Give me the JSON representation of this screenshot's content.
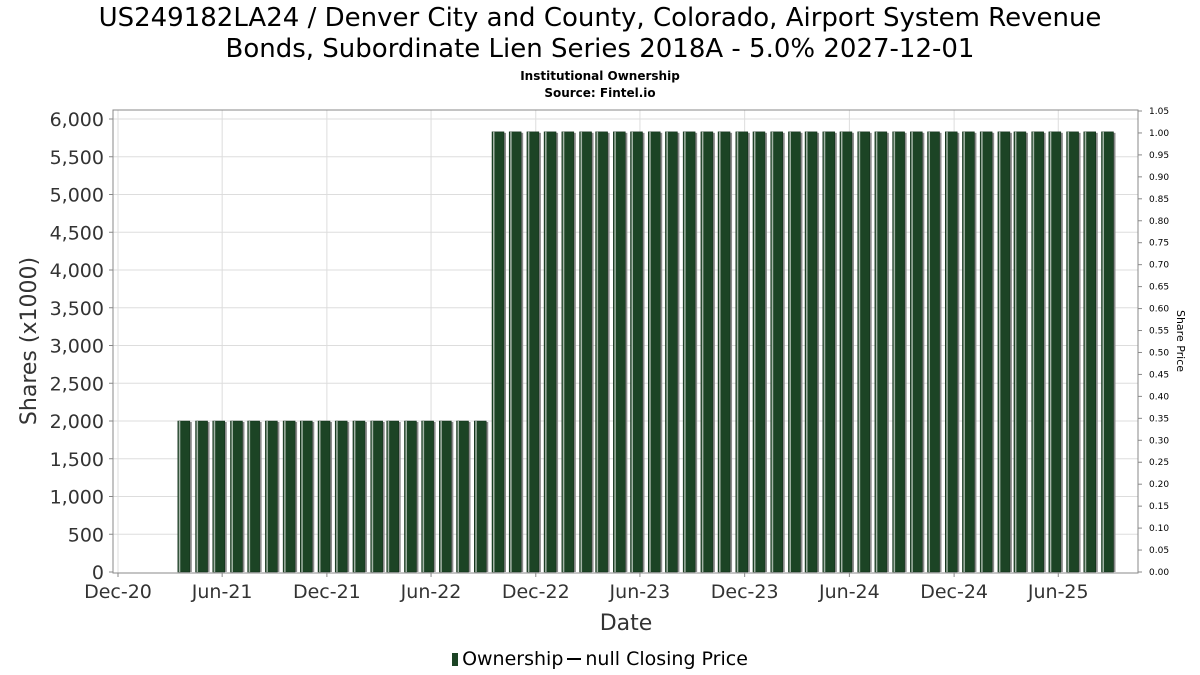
{
  "header": {
    "title_line1": "US249182LA24 / Denver City and County, Colorado, Airport System Revenue",
    "title_line2": "Bonds, Subordinate Lien Series 2018A - 5.0% 2027-12-01",
    "subtitle_line1": "Institutional Ownership",
    "subtitle_line2": "Source: Fintel.io"
  },
  "legend": {
    "ownership_label": "Ownership",
    "price_label": "null Closing Price"
  },
  "colors": {
    "bar_fill": "#1c4425",
    "bar_shadow": "#8a8a8a",
    "grid": "#dddddd",
    "axis": "#888888"
  },
  "chart_data": {
    "type": "bar",
    "title": "US249182LA24 / Denver City and County, Colorado, Airport System Revenue Bonds, Subordinate Lien Series 2018A - 5.0% 2027-12-01",
    "subtitle": "Institutional Ownership",
    "xlabel": "Date",
    "ylabel": "Shares (x1000)",
    "y2label": "Share Price",
    "x_ticks": [
      "Dec-20",
      "Jun-21",
      "Dec-21",
      "Jun-22",
      "Dec-22",
      "Jun-23",
      "Dec-23",
      "Jun-24",
      "Dec-24",
      "Jun-25"
    ],
    "y_ticks": [
      "0",
      "500",
      "1,000",
      "1,500",
      "2,000",
      "2,500",
      "3,000",
      "3,500",
      "4,000",
      "4,500",
      "5,000",
      "5,500",
      "6,000"
    ],
    "y2_ticks": [
      "0.00",
      "0.05",
      "0.10",
      "0.15",
      "0.20",
      "0.25",
      "0.30",
      "0.35",
      "0.40",
      "0.45",
      "0.50",
      "0.55",
      "0.60",
      "0.65",
      "0.70",
      "0.75",
      "0.80",
      "0.85",
      "0.90",
      "0.95",
      "1.00",
      "1.05"
    ],
    "ylim": [
      0,
      6100
    ],
    "y2lim": [
      0,
      1.05
    ],
    "x_start": "2020-12-01",
    "x_end": "2025-12-01",
    "grid": true,
    "legend_position": "bottom",
    "series": [
      {
        "name": "Ownership",
        "x": [
          "2021-03-26",
          "2021-04-26",
          "2021-05-26",
          "2021-06-26",
          "2021-07-26",
          "2021-08-26",
          "2021-09-26",
          "2021-10-26",
          "2021-11-26",
          "2021-12-26",
          "2022-01-26",
          "2022-02-26",
          "2022-03-26",
          "2022-04-26",
          "2022-05-26",
          "2022-06-26",
          "2022-07-26",
          "2022-08-26",
          "2022-09-26",
          "2022-10-26",
          "2022-11-26",
          "2022-12-26",
          "2023-01-26",
          "2023-02-26",
          "2023-03-26",
          "2023-04-26",
          "2023-05-26",
          "2023-06-26",
          "2023-07-26",
          "2023-08-26",
          "2023-09-26",
          "2023-10-26",
          "2023-11-26",
          "2023-12-26",
          "2024-01-26",
          "2024-02-26",
          "2024-03-26",
          "2024-04-26",
          "2024-05-26",
          "2024-06-26",
          "2024-07-26",
          "2024-08-26",
          "2024-09-26",
          "2024-10-26",
          "2024-11-26",
          "2024-12-26",
          "2025-01-26",
          "2025-02-26",
          "2025-03-26",
          "2025-04-26",
          "2025-05-26",
          "2025-06-26",
          "2025-07-26",
          "2025-08-26"
        ],
        "values": [
          2000,
          2000,
          2000,
          2000,
          2000,
          2000,
          2000,
          2000,
          2000,
          2000,
          2000,
          2000,
          2000,
          2000,
          2000,
          2000,
          2000,
          2000,
          5830,
          5830,
          5830,
          5830,
          5830,
          5830,
          5830,
          5830,
          5830,
          5830,
          5830,
          5830,
          5830,
          5830,
          5830,
          5830,
          5830,
          5830,
          5830,
          5830,
          5830,
          5830,
          5830,
          5830,
          5830,
          5830,
          5830,
          5830,
          5830,
          5830,
          5830,
          5830,
          5830,
          5830,
          5830,
          5830
        ]
      }
    ]
  }
}
